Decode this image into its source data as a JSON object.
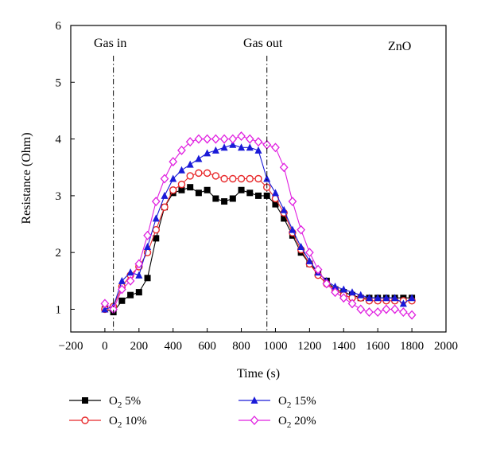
{
  "chart_data": {
    "type": "line",
    "xlabel": "Time (s)",
    "ylabel": "Resistance (Ohm)",
    "xlim": [
      -200,
      2000
    ],
    "ylim": [
      0.6,
      6
    ],
    "xticks": [
      -200,
      0,
      200,
      400,
      600,
      800,
      1000,
      1200,
      1400,
      1600,
      1800,
      2000
    ],
    "xtick_labels": [
      "−200",
      "0",
      "200",
      "400",
      "600",
      "800",
      "1000",
      "1200",
      "1400",
      "1600",
      "1800",
      "2000"
    ],
    "yticks": [
      1,
      2,
      3,
      4,
      5,
      6
    ],
    "grid": false,
    "legend_position": "bottom",
    "annotations": [
      {
        "text": "Gas in",
        "x": 50
      },
      {
        "text": "Gas out",
        "x": 950
      },
      {
        "text": "ZnO"
      }
    ],
    "series": [
      {
        "name": "O2 5%",
        "legend_main": "O",
        "legend_sub": "2",
        "legend_suffix": " 5%",
        "color": "#000000",
        "marker": "square",
        "x": [
          0,
          50,
          100,
          150,
          200,
          250,
          300,
          350,
          400,
          450,
          500,
          550,
          600,
          650,
          700,
          750,
          800,
          850,
          900,
          950,
          1000,
          1050,
          1100,
          1150,
          1200,
          1250,
          1300,
          1350,
          1400,
          1450,
          1500,
          1550,
          1600,
          1650,
          1700,
          1750,
          1800
        ],
        "y": [
          1.0,
          0.95,
          1.15,
          1.25,
          1.3,
          1.55,
          2.25,
          2.8,
          3.05,
          3.1,
          3.15,
          3.05,
          3.1,
          2.95,
          2.9,
          2.95,
          3.1,
          3.05,
          3.0,
          3.0,
          2.85,
          2.6,
          2.3,
          2.0,
          1.8,
          1.65,
          1.5,
          1.35,
          1.3,
          1.25,
          1.2,
          1.2,
          1.2,
          1.2,
          1.2,
          1.2,
          1.2
        ]
      },
      {
        "name": "O2 10%",
        "legend_main": "O",
        "legend_sub": "2",
        "legend_suffix": " 10%",
        "color": "#e8282a",
        "marker": "circle",
        "x": [
          0,
          50,
          100,
          150,
          200,
          250,
          300,
          350,
          400,
          450,
          500,
          550,
          600,
          650,
          700,
          750,
          800,
          850,
          900,
          950,
          1000,
          1050,
          1100,
          1150,
          1200,
          1250,
          1300,
          1350,
          1400,
          1450,
          1500,
          1550,
          1600,
          1650,
          1700,
          1750,
          1800
        ],
        "y": [
          1.0,
          1.05,
          1.4,
          1.6,
          1.75,
          2.0,
          2.4,
          2.8,
          3.1,
          3.2,
          3.35,
          3.4,
          3.4,
          3.35,
          3.3,
          3.3,
          3.3,
          3.3,
          3.3,
          3.15,
          2.95,
          2.7,
          2.35,
          2.05,
          1.8,
          1.6,
          1.45,
          1.35,
          1.25,
          1.2,
          1.2,
          1.15,
          1.15,
          1.15,
          1.15,
          1.15,
          1.15
        ]
      },
      {
        "name": "O2 15%",
        "legend_main": "O",
        "legend_sub": "2",
        "legend_suffix": " 15%",
        "color": "#1a1ad8",
        "marker": "triangle",
        "x": [
          0,
          50,
          100,
          150,
          200,
          250,
          300,
          350,
          400,
          450,
          500,
          550,
          600,
          650,
          700,
          750,
          800,
          850,
          900,
          950,
          1000,
          1050,
          1100,
          1150,
          1200,
          1250,
          1300,
          1350,
          1400,
          1450,
          1500,
          1550,
          1600,
          1650,
          1700,
          1750,
          1800
        ],
        "y": [
          1.0,
          1.05,
          1.5,
          1.65,
          1.6,
          2.1,
          2.6,
          3.0,
          3.3,
          3.45,
          3.55,
          3.65,
          3.75,
          3.8,
          3.85,
          3.9,
          3.85,
          3.85,
          3.8,
          3.3,
          3.05,
          2.75,
          2.4,
          2.1,
          1.85,
          1.65,
          1.5,
          1.4,
          1.35,
          1.3,
          1.25,
          1.2,
          1.2,
          1.2,
          1.2,
          1.1,
          1.2
        ]
      },
      {
        "name": "O2 20%",
        "legend_main": "O",
        "legend_sub": "2",
        "legend_suffix": " 20%",
        "color": "#e020e0",
        "marker": "diamond",
        "x": [
          0,
          50,
          100,
          150,
          200,
          250,
          300,
          350,
          400,
          450,
          500,
          550,
          600,
          650,
          700,
          750,
          800,
          850,
          900,
          950,
          1000,
          1050,
          1100,
          1150,
          1200,
          1250,
          1300,
          1350,
          1400,
          1450,
          1500,
          1550,
          1600,
          1650,
          1700,
          1750,
          1800
        ],
        "y": [
          1.1,
          1.0,
          1.35,
          1.5,
          1.8,
          2.3,
          2.9,
          3.3,
          3.6,
          3.8,
          3.95,
          4.0,
          4.0,
          4.0,
          4.0,
          4.0,
          4.05,
          4.0,
          3.95,
          3.9,
          3.85,
          3.5,
          2.9,
          2.4,
          2.0,
          1.7,
          1.45,
          1.3,
          1.2,
          1.1,
          1.0,
          0.95,
          0.95,
          1.0,
          1.0,
          0.95,
          0.9
        ]
      }
    ]
  }
}
